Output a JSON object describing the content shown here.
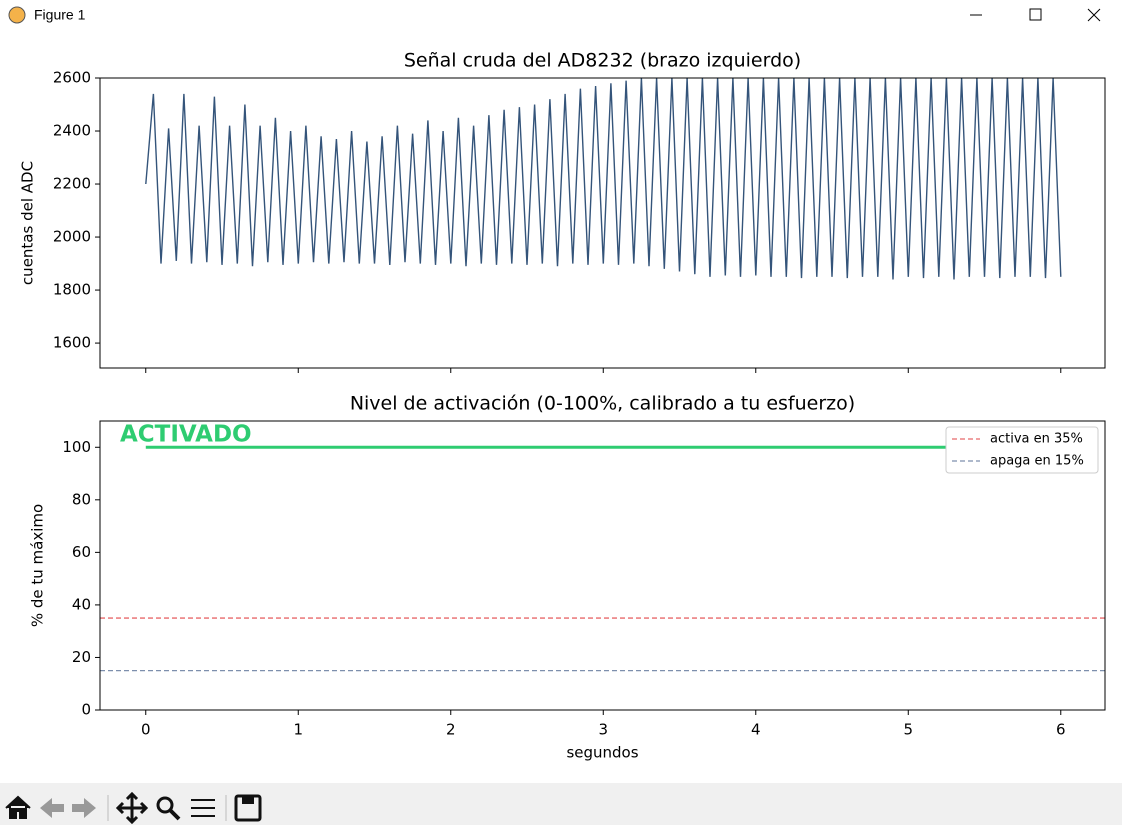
{
  "window": {
    "title": "Figure 1"
  },
  "chart_data": [
    {
      "type": "line",
      "title": "Señal cruda del AD8232 (brazo izquierdo)",
      "y_label": "cuentas del ADC",
      "x": [
        0,
        0.05,
        0.1,
        0.15,
        0.2,
        0.25,
        0.3,
        0.35,
        0.4,
        0.45,
        0.5,
        0.55,
        0.6,
        0.65,
        0.7,
        0.75,
        0.8,
        0.85,
        0.9,
        0.95,
        1,
        1.05,
        1.1,
        1.15,
        1.2,
        1.25,
        1.3,
        1.35,
        1.4,
        1.45,
        1.5,
        1.55,
        1.6,
        1.65,
        1.7,
        1.75,
        1.8,
        1.85,
        1.9,
        1.95,
        2,
        2.05,
        2.1,
        2.15,
        2.2,
        2.25,
        2.3,
        2.35,
        2.4,
        2.45,
        2.5,
        2.55,
        2.6,
        2.65,
        2.7,
        2.75,
        2.8,
        2.85,
        2.9,
        2.95,
        3,
        3.05,
        3.1,
        3.15,
        3.2,
        3.25,
        3.3,
        3.35,
        3.4,
        3.45,
        3.5,
        3.55,
        3.6,
        3.65,
        3.7,
        3.75,
        3.8,
        3.85,
        3.9,
        3.95,
        4,
        4.05,
        4.1,
        4.15,
        4.2,
        4.25,
        4.3,
        4.35,
        4.4,
        4.45,
        4.5,
        4.55,
        4.6,
        4.65,
        4.7,
        4.75,
        4.8,
        4.85,
        4.9,
        4.95,
        5,
        5.05,
        5.1,
        5.15,
        5.2,
        5.25,
        5.3,
        5.35,
        5.4,
        5.45,
        5.5,
        5.55,
        5.6,
        5.65,
        5.7,
        5.75,
        5.8,
        5.85,
        5.9,
        5.95,
        6
      ],
      "series": [
        {
          "color": "#34547a",
          "values": [
            2200,
            2540,
            1900,
            2410,
            1910,
            2540,
            1900,
            2420,
            1905,
            2530,
            1895,
            2420,
            1900,
            2500,
            1890,
            2420,
            1905,
            2450,
            1895,
            2400,
            1900,
            2420,
            1905,
            2380,
            1900,
            2370,
            1905,
            2400,
            1900,
            2360,
            1900,
            2380,
            1895,
            2420,
            1905,
            2390,
            1900,
            2440,
            1895,
            2400,
            1900,
            2450,
            1890,
            2420,
            1900,
            2460,
            1895,
            2480,
            1900,
            2490,
            1895,
            2500,
            1900,
            2520,
            1890,
            2540,
            1900,
            2560,
            1895,
            2570,
            1900,
            2580,
            1895,
            2590,
            1900,
            2600,
            1890,
            2600,
            1880,
            2600,
            1870,
            2600,
            1860,
            2600,
            1850,
            2600,
            1855,
            2600,
            1850,
            2600,
            1855,
            2600,
            1850,
            2600,
            1850,
            2600,
            1845,
            2600,
            1850,
            2600,
            1850,
            2600,
            1845,
            2600,
            1850,
            2600,
            1850,
            2600,
            1840,
            2600,
            1850,
            2600,
            1845,
            2600,
            1850,
            2600,
            1840,
            2600,
            1850,
            2600,
            1850,
            2600,
            1845,
            2600,
            1850,
            2600,
            1850,
            2600,
            1845,
            2600,
            1850
          ]
        }
      ],
      "xlim": [
        -0.3,
        6.29
      ],
      "xticks": [
        0,
        1,
        2,
        3,
        4,
        5,
        6
      ],
      "ylim": [
        1506,
        2600
      ],
      "yticks": [
        1600,
        1800,
        2000,
        2200,
        2400,
        2600
      ]
    },
    {
      "type": "line",
      "title": "Nivel de activación (0-100%, calibrado a tu esfuerzo)",
      "x_label": "segundos",
      "y_label": "% de tu máximo",
      "x": [
        0,
        6
      ],
      "series": [
        {
          "color": "#2ecc71",
          "values": [
            100,
            100
          ]
        }
      ],
      "hlines": [
        {
          "name": "activa en 35%",
          "value": 35,
          "color": "#e8696b"
        },
        {
          "name": "apaga en 15%",
          "value": 15,
          "color": "#7d8fad"
        }
      ],
      "annotation": {
        "text": "ACTIVADO",
        "color": "#2ecc71"
      },
      "legend": "upper right",
      "xlim": [
        -0.3,
        6.29
      ],
      "xticks": [
        0,
        1,
        2,
        3,
        4,
        5,
        6
      ],
      "ylim": [
        0,
        110
      ],
      "yticks": [
        0,
        20,
        40,
        60,
        80,
        100
      ]
    }
  ]
}
